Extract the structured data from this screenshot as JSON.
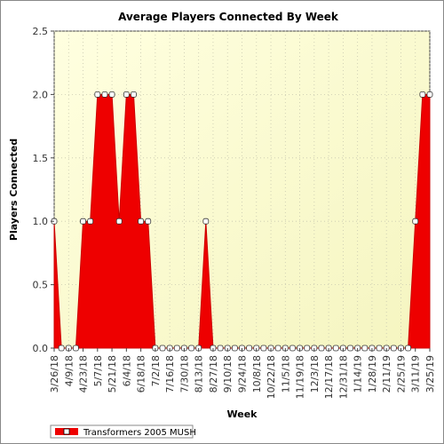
{
  "chart_data": {
    "type": "area",
    "title": "Average Players Connected By Week",
    "xlabel": "Week",
    "ylabel": "Players Connected",
    "ylim": [
      0,
      2.5
    ],
    "y_ticks": [
      "0.0",
      "0.5",
      "1.0",
      "1.5",
      "2.0",
      "2.5"
    ],
    "x": [
      "3/26/18",
      "4/2/18",
      "4/9/18",
      "4/16/18",
      "4/23/18",
      "4/30/18",
      "5/7/18",
      "5/14/18",
      "5/21/18",
      "5/28/18",
      "6/4/18",
      "6/11/18",
      "6/18/18",
      "6/25/18",
      "7/2/18",
      "7/9/18",
      "7/16/18",
      "7/23/18",
      "7/30/18",
      "8/6/18",
      "8/13/18",
      "8/20/18",
      "8/27/18",
      "9/3/18",
      "9/10/18",
      "9/17/18",
      "9/24/18",
      "10/1/18",
      "10/8/18",
      "10/15/18",
      "10/22/18",
      "10/29/18",
      "11/5/18",
      "11/12/18",
      "11/19/18",
      "11/26/18",
      "12/3/18",
      "12/10/18",
      "12/17/18",
      "12/24/18",
      "12/31/18",
      "1/7/19",
      "1/14/19",
      "1/21/19",
      "1/28/19",
      "2/4/19",
      "2/11/19",
      "2/18/19",
      "2/25/19",
      "3/4/19",
      "3/11/19",
      "3/18/19",
      "3/25/19"
    ],
    "x_tick_labels": [
      "3/26/18",
      "4/9/18",
      "4/23/18",
      "5/7/18",
      "5/21/18",
      "6/4/18",
      "6/18/18",
      "7/2/18",
      "7/16/18",
      "7/30/18",
      "8/13/18",
      "8/27/18",
      "9/10/18",
      "9/24/18",
      "10/8/18",
      "10/22/18",
      "11/5/18",
      "11/19/18",
      "12/3/18",
      "12/17/18",
      "12/31/18",
      "1/14/19",
      "1/28/19",
      "2/11/19",
      "2/25/19",
      "3/11/19",
      "3/25/19"
    ],
    "series": [
      {
        "name": "Transformers 2005 MUSH",
        "color": "#ee0000",
        "values": [
          1,
          0,
          0,
          0,
          1,
          1,
          2,
          2,
          2,
          1,
          2,
          2,
          1,
          1,
          0,
          0,
          0,
          0,
          0,
          0,
          0,
          1,
          0,
          0,
          0,
          0,
          0,
          0,
          0,
          0,
          0,
          0,
          0,
          0,
          0,
          0,
          0,
          0,
          0,
          0,
          0,
          0,
          0,
          0,
          0,
          0,
          0,
          0,
          0,
          0,
          1,
          2,
          2
        ]
      }
    ],
    "grid": true,
    "legend_position": "bottom-left"
  }
}
